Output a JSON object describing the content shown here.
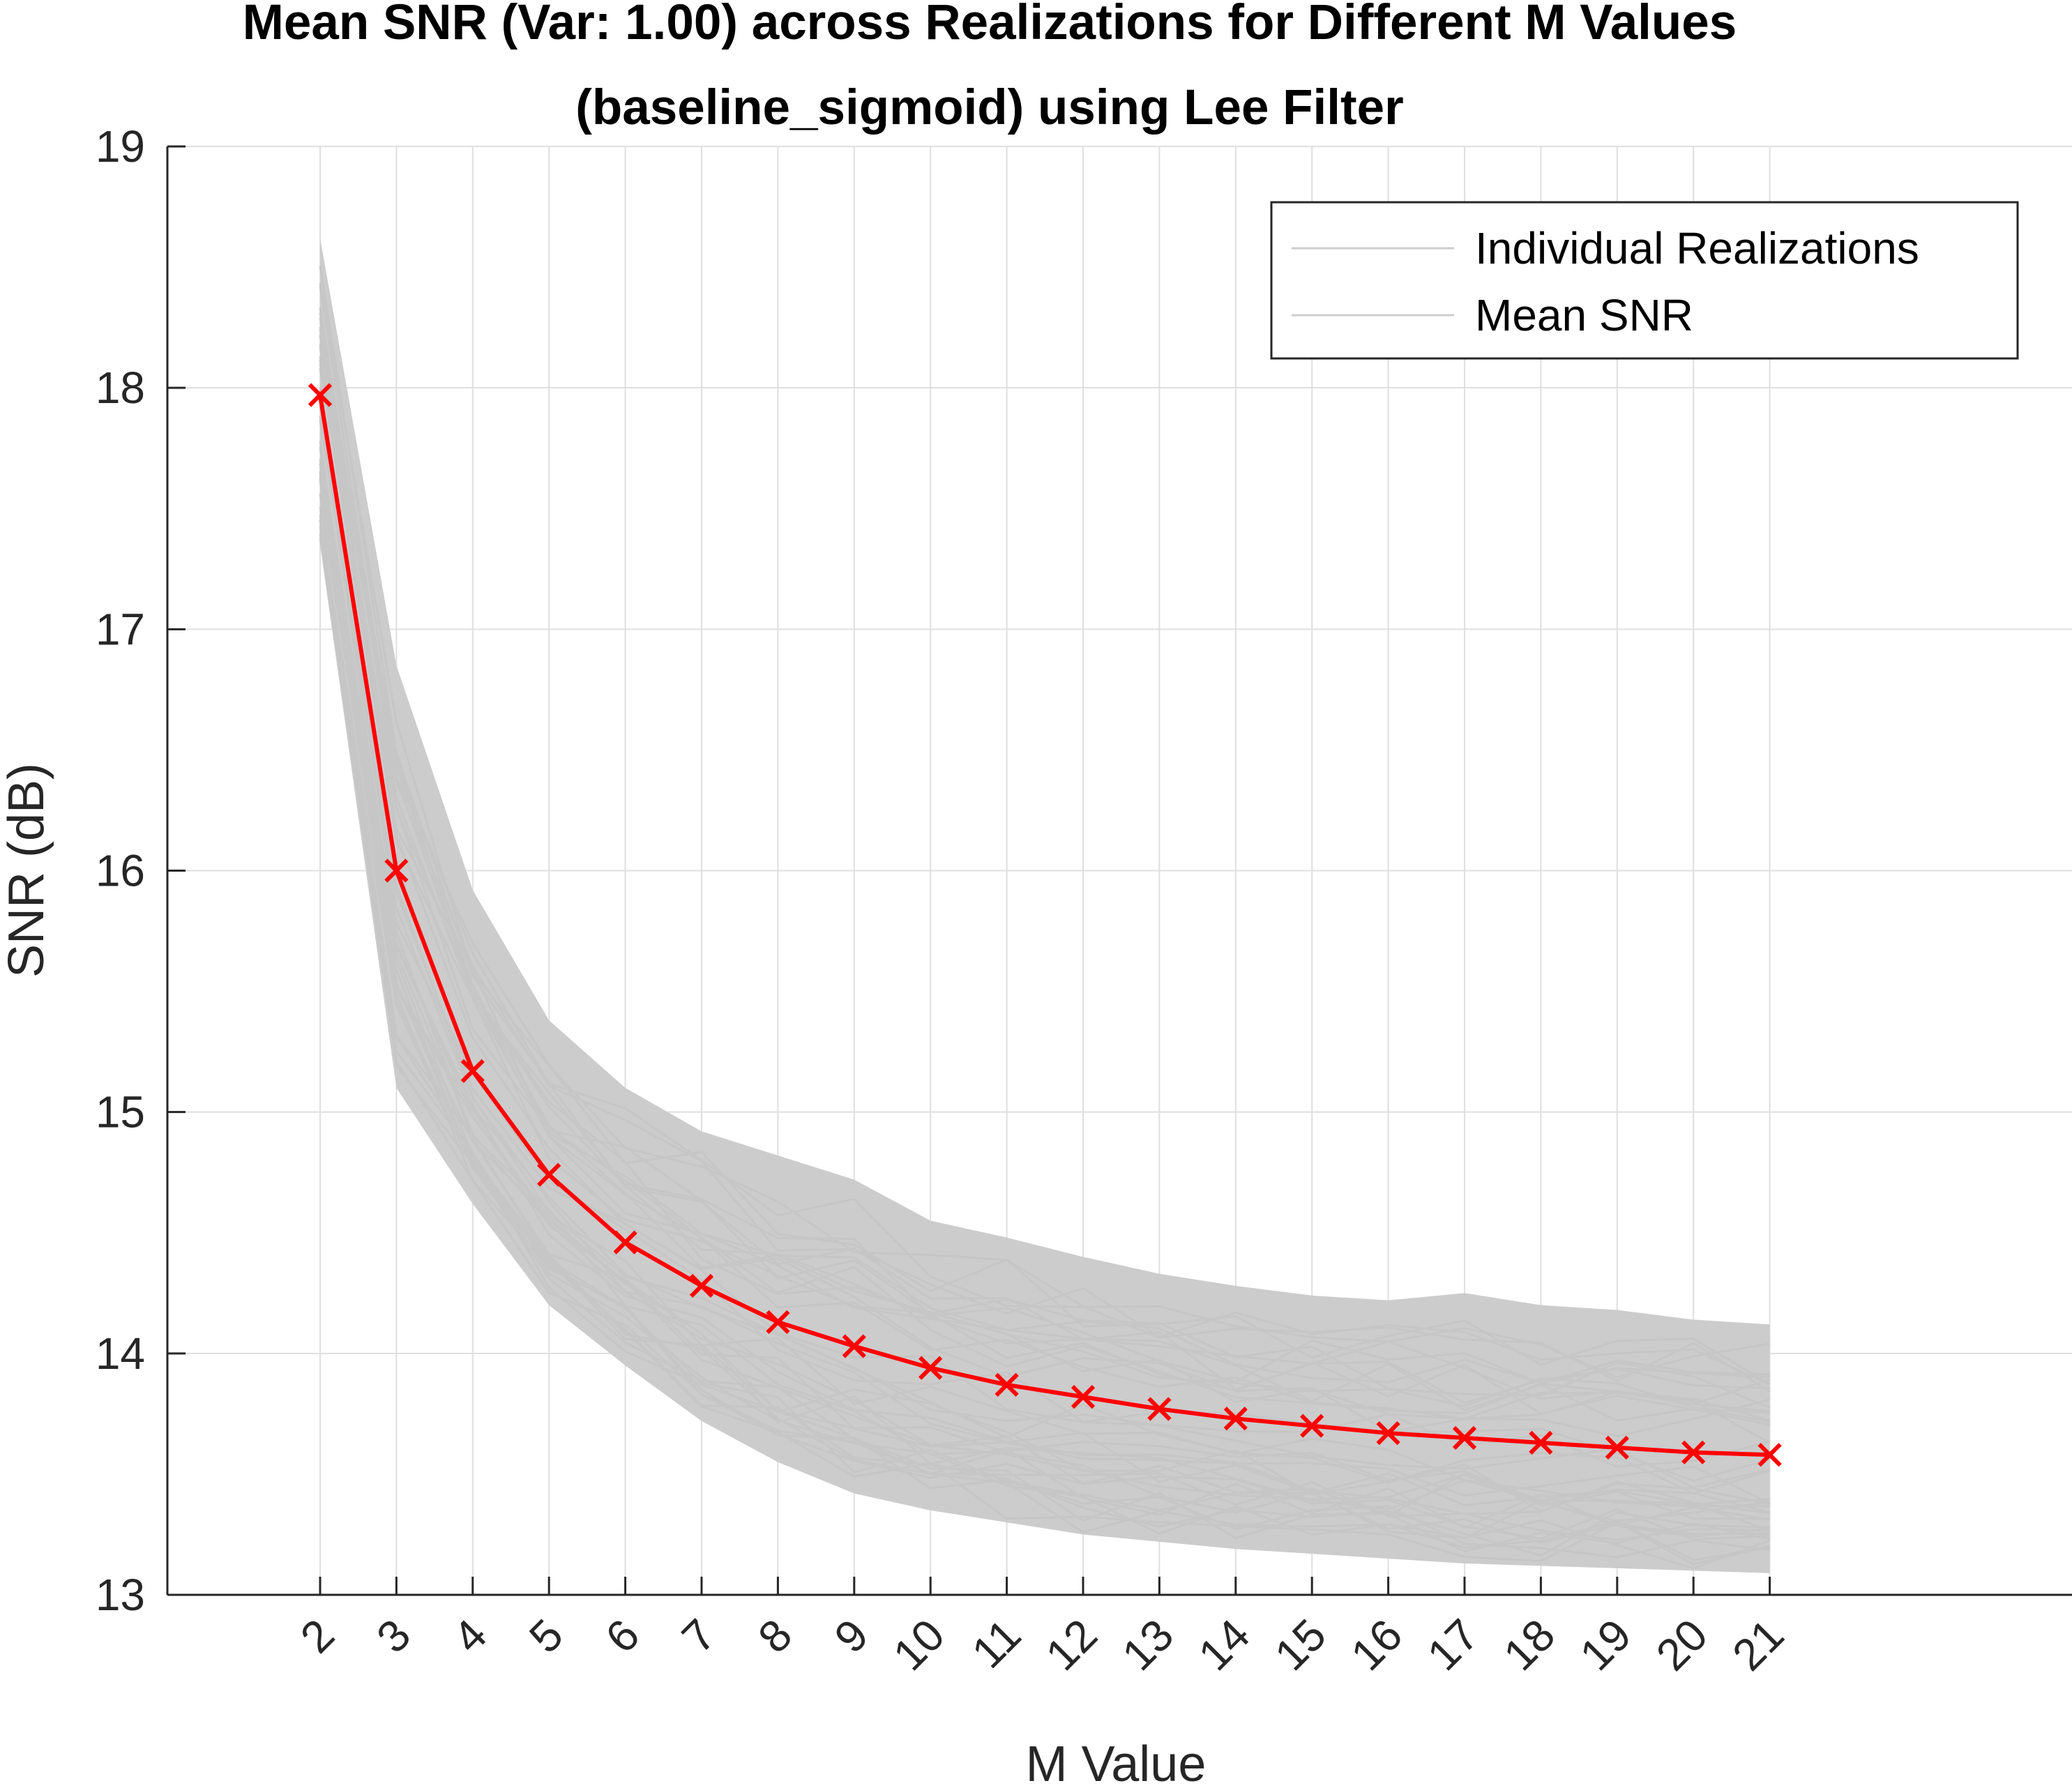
{
  "chart_data": {
    "type": "line",
    "title": "Mean SNR (Var: 1.00) across Realizations for Different M Values",
    "subtitle": "(baseline_sigmoid) using Lee Filter",
    "xlabel": "M Value",
    "ylabel": "SNR (dB)",
    "ylim": [
      13,
      19
    ],
    "yticks": [
      "13",
      "14",
      "15",
      "16",
      "17",
      "18",
      "19"
    ],
    "x": [
      "2",
      "3",
      "4",
      "5",
      "6",
      "7",
      "8",
      "9",
      "10",
      "11",
      "12",
      "13",
      "14",
      "15",
      "16",
      "17",
      "18",
      "19",
      "20",
      "21"
    ],
    "grid": true,
    "legend_position": "top-right",
    "legend": [
      "Individual Realizations",
      "Mean SNR"
    ],
    "series": [
      {
        "name": "Mean SNR",
        "color": "#ff0000",
        "marker": "x",
        "values": [
          17.97,
          16.0,
          15.17,
          14.74,
          14.46,
          14.28,
          14.13,
          14.03,
          13.94,
          13.87,
          13.82,
          13.77,
          13.73,
          13.7,
          13.67,
          13.65,
          13.63,
          13.61,
          13.59,
          13.58
        ]
      }
    ],
    "realizations": {
      "name": "Individual Realizations",
      "color": "#cccccc",
      "band_min": [
        17.35,
        15.1,
        14.62,
        14.2,
        13.95,
        13.72,
        13.55,
        13.42,
        13.35,
        13.3,
        13.25,
        13.22,
        13.19,
        13.17,
        13.15,
        13.13,
        13.12,
        13.11,
        13.1,
        13.09
      ],
      "band_max": [
        18.62,
        16.85,
        15.92,
        15.38,
        15.1,
        14.92,
        14.82,
        14.72,
        14.55,
        14.48,
        14.4,
        14.33,
        14.28,
        14.24,
        14.22,
        14.25,
        14.2,
        14.18,
        14.14,
        14.12
      ]
    }
  }
}
